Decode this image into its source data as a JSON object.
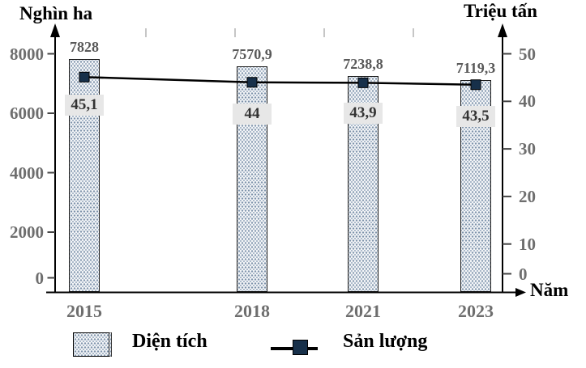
{
  "chart_data": {
    "type": "bar",
    "subtype": "combo-bar-line-dual-axis",
    "title": "",
    "categories": [
      "2015",
      "2018",
      "2021",
      "2023"
    ],
    "series": [
      {
        "name": "Diện tích",
        "type": "bar",
        "axis": "left",
        "unit": "nghìn ha",
        "values": [
          7828,
          7570.9,
          7238.8,
          7119.3
        ],
        "value_labels": [
          "7828",
          "7570,9",
          "7238,8",
          "7119,3"
        ]
      },
      {
        "name": "Sản lượng",
        "type": "line",
        "axis": "right",
        "unit": "triệu tấn",
        "values": [
          45.1,
          44,
          43.9,
          43.5
        ],
        "value_labels": [
          "45,1",
          "44",
          "43,9",
          "43,5"
        ]
      }
    ],
    "left_axis": {
      "title": "Nghìn ha",
      "ticks": [
        0,
        2000,
        4000,
        6000,
        8000
      ],
      "range": [
        0,
        8000
      ]
    },
    "right_axis": {
      "title": "Triệu tấn",
      "ticks": [
        0,
        10,
        20,
        30,
        40,
        50
      ],
      "range": [
        0,
        50
      ]
    },
    "x_axis": {
      "title": "Năm"
    },
    "grid": false,
    "legend_position": "bottom",
    "colors": {
      "bar_pattern_dot": "#7e93ab",
      "bar_border": "#1a1a1a",
      "line": "#000000",
      "marker": "#17304a",
      "tick_text": "#6e6e6e",
      "bar_value_text": "#595959",
      "label_box_bg": "#e7e7e7",
      "axis": "#000000"
    }
  }
}
